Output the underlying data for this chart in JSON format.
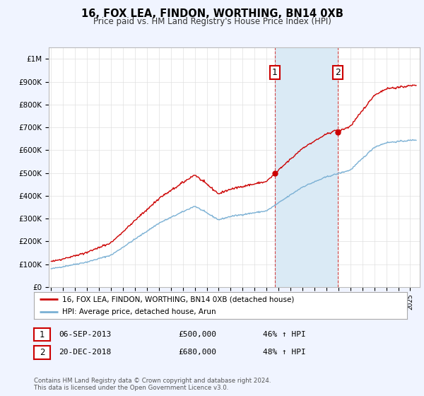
{
  "title": "16, FOX LEA, FINDON, WORTHING, BN14 0XB",
  "subtitle": "Price paid vs. HM Land Registry's House Price Index (HPI)",
  "ylabel_ticks": [
    "£0",
    "£100K",
    "£200K",
    "£300K",
    "£400K",
    "£500K",
    "£600K",
    "£700K",
    "£800K",
    "£900K",
    "£1M"
  ],
  "ytick_values": [
    0,
    100000,
    200000,
    300000,
    400000,
    500000,
    600000,
    700000,
    800000,
    900000,
    1000000
  ],
  "ylim": [
    0,
    1050000
  ],
  "xlim_start": 1994.8,
  "xlim_end": 2025.8,
  "bg_color": "#f0f4ff",
  "plot_bg_color": "#ffffff",
  "red_line_color": "#cc0000",
  "blue_line_color": "#7ab0d4",
  "sale1_year": 2013.68,
  "sale1_price": 500000,
  "sale2_year": 2018.97,
  "sale2_price": 680000,
  "legend_line1": "16, FOX LEA, FINDON, WORTHING, BN14 0XB (detached house)",
  "legend_line2": "HPI: Average price, detached house, Arun",
  "table_row1": [
    "1",
    "06-SEP-2013",
    "£500,000",
    "46% ↑ HPI"
  ],
  "table_row2": [
    "2",
    "20-DEC-2018",
    "£680,000",
    "48% ↑ HPI"
  ],
  "footer": "Contains HM Land Registry data © Crown copyright and database right 2024.\nThis data is licensed under the Open Government Licence v3.0.",
  "highlight_rect_color": "#daeaf5",
  "grid_color": "#e0e0e0",
  "spine_color": "#bbbbbb"
}
